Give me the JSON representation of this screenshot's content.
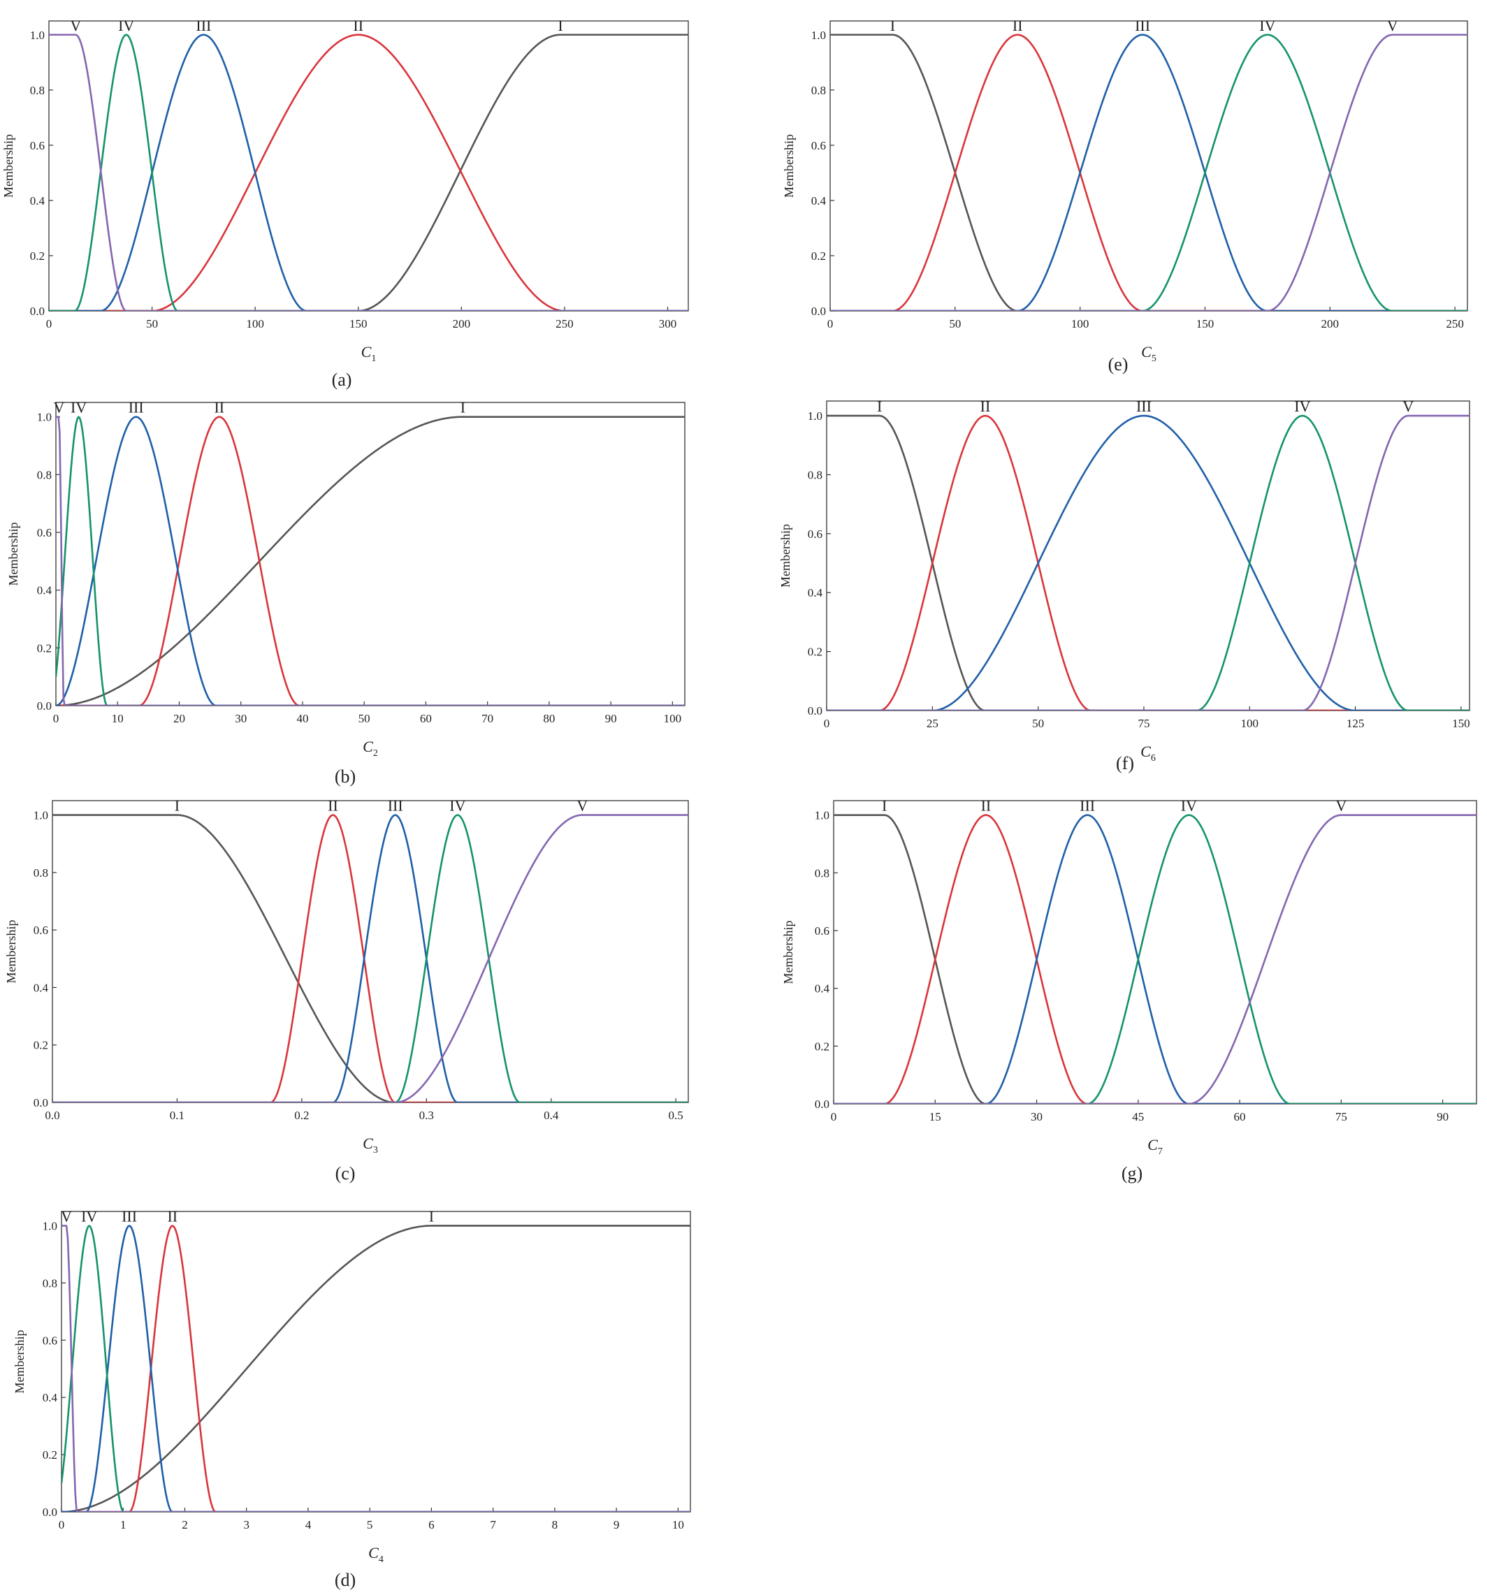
{
  "figure": {
    "ylabel": "Membership",
    "ylim": [
      0,
      1.05
    ],
    "yticks": [
      "0.0",
      "0.2",
      "0.4",
      "0.6",
      "0.8",
      "1.0"
    ],
    "grades": [
      "I",
      "II",
      "III",
      "IV",
      "V"
    ],
    "colors": {
      "I": "#555555",
      "II": "#d9353b",
      "III": "#1f5fa8",
      "IV": "#14936a",
      "V": "#8466b0"
    }
  },
  "chart_data": [
    {
      "id": "a",
      "type": "line",
      "caption": "(a)",
      "xlabel": "C",
      "xsub": "1",
      "xlim": [
        0,
        310
      ],
      "xticks": [
        0,
        50,
        100,
        150,
        200,
        250,
        300
      ],
      "series": [
        {
          "name": "I",
          "shape": "rising",
          "a": 150,
          "b": 248
        },
        {
          "name": "II",
          "shape": "bell",
          "center": 150,
          "width": 50
        },
        {
          "name": "III",
          "shape": "bell",
          "center": 75,
          "width": 25
        },
        {
          "name": "IV",
          "shape": "bell",
          "center": 37.5,
          "width": 12.5
        },
        {
          "name": "V",
          "shape": "falling",
          "a": 13,
          "b": 37.5
        }
      ]
    },
    {
      "id": "b",
      "type": "line",
      "caption": "(b)",
      "xlabel": "C",
      "xsub": "2",
      "xlim": [
        0,
        102
      ],
      "xticks": [
        0,
        10,
        20,
        30,
        40,
        50,
        60,
        70,
        80,
        90,
        100
      ],
      "series": [
        {
          "name": "I",
          "shape": "rising",
          "a": 0,
          "b": 66
        },
        {
          "name": "II",
          "shape": "bell",
          "center": 26.5,
          "width": 6.5
        },
        {
          "name": "III",
          "shape": "bell",
          "center": 13,
          "width": 6.5
        },
        {
          "name": "IV",
          "shape": "bell",
          "center": 3.7,
          "width": 2.3
        },
        {
          "name": "V",
          "shape": "falling",
          "a": 0.5,
          "b": 1.3
        }
      ]
    },
    {
      "id": "c",
      "type": "line",
      "caption": "(c)",
      "xlabel": "C",
      "xsub": "3",
      "xlim": [
        0,
        0.51
      ],
      "xticks": [
        0.0,
        0.1,
        0.2,
        0.3,
        0.4,
        0.5
      ],
      "xdec": 1,
      "series": [
        {
          "name": "I",
          "shape": "falling",
          "a": 0.1,
          "b": 0.275
        },
        {
          "name": "II",
          "shape": "bell",
          "center": 0.225,
          "width": 0.025
        },
        {
          "name": "III",
          "shape": "bell",
          "center": 0.275,
          "width": 0.025
        },
        {
          "name": "IV",
          "shape": "bell",
          "center": 0.325,
          "width": 0.025
        },
        {
          "name": "V",
          "shape": "rising",
          "a": 0.275,
          "b": 0.425
        }
      ]
    },
    {
      "id": "d",
      "type": "line",
      "caption": "(d)",
      "xlabel": "C",
      "xsub": "4",
      "xlim": [
        0,
        10.2
      ],
      "xticks": [
        0,
        1,
        2,
        3,
        4,
        5,
        6,
        7,
        8,
        9,
        10
      ],
      "series": [
        {
          "name": "I",
          "shape": "rising",
          "a": 0,
          "b": 6
        },
        {
          "name": "II",
          "shape": "bell",
          "center": 1.8,
          "width": 0.35
        },
        {
          "name": "III",
          "shape": "bell",
          "center": 1.1,
          "width": 0.35
        },
        {
          "name": "IV",
          "shape": "bell",
          "center": 0.45,
          "width": 0.28
        },
        {
          "name": "V",
          "shape": "falling",
          "a": 0.08,
          "b": 0.25
        }
      ]
    },
    {
      "id": "e",
      "type": "line",
      "caption": "(e)",
      "xlabel": "C",
      "xsub": "5",
      "xlim": [
        0,
        255
      ],
      "xticks": [
        0,
        50,
        100,
        150,
        200,
        250
      ],
      "series": [
        {
          "name": "I",
          "shape": "falling",
          "a": 25,
          "b": 75
        },
        {
          "name": "II",
          "shape": "bell",
          "center": 75,
          "width": 25
        },
        {
          "name": "III",
          "shape": "bell",
          "center": 125,
          "width": 25
        },
        {
          "name": "IV",
          "shape": "bell",
          "center": 175,
          "width": 25
        },
        {
          "name": "V",
          "shape": "rising",
          "a": 175,
          "b": 225
        }
      ]
    },
    {
      "id": "f",
      "type": "line",
      "caption": "(f)",
      "xlabel": "C",
      "xsub": "6",
      "xlim": [
        0,
        152
      ],
      "xticks": [
        0,
        25,
        50,
        75,
        100,
        125,
        150
      ],
      "series": [
        {
          "name": "I",
          "shape": "falling",
          "a": 12.5,
          "b": 37.5
        },
        {
          "name": "II",
          "shape": "bell",
          "center": 37.5,
          "width": 12.5
        },
        {
          "name": "III",
          "shape": "bell",
          "center": 75,
          "width": 25
        },
        {
          "name": "IV",
          "shape": "bell",
          "center": 112.5,
          "width": 12.5
        },
        {
          "name": "V",
          "shape": "rising",
          "a": 112.5,
          "b": 137.5
        }
      ]
    },
    {
      "id": "g",
      "type": "line",
      "caption": "(g)",
      "xlabel": "C",
      "xsub": "7",
      "xlim": [
        0,
        95
      ],
      "xticks": [
        0,
        15,
        30,
        45,
        60,
        75,
        90
      ],
      "series": [
        {
          "name": "I",
          "shape": "falling",
          "a": 7.5,
          "b": 22.5
        },
        {
          "name": "II",
          "shape": "bell",
          "center": 22.5,
          "width": 7.5
        },
        {
          "name": "III",
          "shape": "bell",
          "center": 37.5,
          "width": 7.5
        },
        {
          "name": "IV",
          "shape": "bell",
          "center": 52.5,
          "width": 7.5
        },
        {
          "name": "V",
          "shape": "rising",
          "a": 52.5,
          "b": 75
        }
      ]
    }
  ]
}
